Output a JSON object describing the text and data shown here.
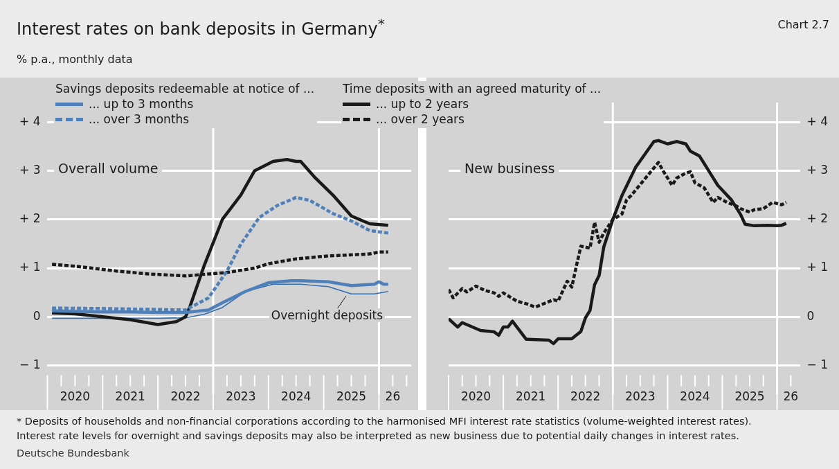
{
  "chart_data": [
    {
      "type": "line",
      "title": "Interest rates on bank deposits in Germany$^{*}$",
      "subtitle": "% p.a., monthly data",
      "annotations": [
        "Overall volume",
        "Savings deposits redeemable at notice of ...",
        "Time deposits with an agreed maturity of ...",
        "Chart 2.7",
        "* Deposits of households and non-financial corporations according to the harmonised MFI interest rate statistics (volume-weighted interest rates).",
        "Interest rate levels for overnight and savings deposits may also be interpreted as new business due to potential daily changes in interest rates.",
        "Deutsche Bundesbank",
        {
          "text": "Overnight deposits",
          "x": "2025-06",
          "y": 0.47
        }
      ],
      "xlim": [
        "2020-01",
        "2026-08"
      ],
      "ylim": [
        -1,
        4.4
      ],
      "xticks": [
        {
          "value": "2020-07",
          "label": "2020"
        },
        {
          "value": "2021-07",
          "label": "2021"
        },
        {
          "value": "2022-07",
          "label": "2022"
        },
        {
          "value": "2023-07",
          "label": "2023"
        },
        {
          "value": "2024-07",
          "label": "2024"
        },
        {
          "value": "2025-07",
          "label": "2025"
        },
        {
          "value": "2026-04",
          "label": "26"
        }
      ],
      "yticks": [
        {
          "value": -1,
          "label": "− 1"
        },
        0,
        {
          "value": 1,
          "label": "+ 1"
        },
        {
          "value": 2,
          "label": "+ 2"
        },
        {
          "value": 3,
          "label": "+ 3"
        },
        {
          "value": 4,
          "label": "+ 4"
        }
      ],
      "grid": "y",
      "legend": "top",
      "marker": "none",
      "ref_lines": [
        {
          "axis": "x",
          "value": "2023-01",
          "color": "#ffffff"
        },
        {
          "axis": "x",
          "value": "2026-01",
          "color": "#ffffff"
        }
      ],
      "series": [
        {
          "name": "... up to 3 months",
          "color": "#4f80b9",
          "line_style": "solid",
          "x": [
            "2020-02",
            "2020-07",
            "2021-01",
            "2021-07",
            "2022-01",
            "2022-07",
            "2022-12",
            "2023-03",
            "2023-08",
            "2024-01",
            "2024-06",
            "2024-08",
            "2025-02",
            "2025-07",
            "2025-12",
            "2026-01",
            "2026-02",
            "2026-03"
          ],
          "values": [
            0.12,
            0.11,
            0.1,
            0.1,
            0.09,
            0.09,
            0.14,
            0.29,
            0.52,
            0.7,
            0.74,
            0.74,
            0.72,
            0.64,
            0.67,
            0.72,
            0.67,
            0.67
          ]
        },
        {
          "name": "... over 3 months",
          "color": "#4f80b9",
          "line_style": "dashed",
          "x": [
            "2020-02",
            "2021-01",
            "2022-01",
            "2022-07",
            "2022-12",
            "2023-04",
            "2023-07",
            "2023-11",
            "2024-03",
            "2024-07",
            "2024-10",
            "2025-03",
            "2025-07",
            "2025-11",
            "2026-03"
          ],
          "values": [
            0.18,
            0.17,
            0.15,
            0.14,
            0.39,
            0.94,
            1.49,
            2.04,
            2.29,
            2.45,
            2.39,
            2.12,
            1.97,
            1.77,
            1.72
          ]
        },
        {
          "name": "... up to 2 years",
          "color": "#1a1a1a",
          "line_style": "solid",
          "x": [
            "2020-02",
            "2020-07",
            "2021-01",
            "2021-07",
            "2022-01",
            "2022-05",
            "2022-07",
            "2022-08",
            "2022-11",
            "2023-03",
            "2023-07",
            "2023-10",
            "2024-02",
            "2024-05",
            "2024-07",
            "2024-08",
            "2024-11",
            "2025-03",
            "2025-07",
            "2025-11",
            "2026-03"
          ],
          "values": [
            0.08,
            0.06,
            0,
            -0.06,
            -0.16,
            -0.1,
            0,
            0.22,
            1.04,
            2,
            2.5,
            3,
            3.19,
            3.23,
            3.19,
            3.19,
            2.87,
            2.5,
            2.07,
            1.91,
            1.88
          ]
        },
        {
          "name": "... over 2 years",
          "color": "#1a1a1a",
          "line_style": "dashed",
          "x": [
            "2020-02",
            "2020-07",
            "2021-04",
            "2021-11",
            "2022-07",
            "2022-12",
            "2023-04",
            "2023-10",
            "2024-01",
            "2024-07",
            "2025-02",
            "2025-11",
            "2026-01",
            "2026-03"
          ],
          "values": [
            1.08,
            1.04,
            0.94,
            0.88,
            0.84,
            0.88,
            0.91,
            1,
            1.09,
            1.19,
            1.25,
            1.29,
            1.33,
            1.33
          ]
        },
        {
          "color": "#2f6db0",
          "line_style": "solid",
          "x": [
            "2020-02",
            "2021-01",
            "2022-01",
            "2022-07",
            "2022-11",
            "2023-03",
            "2023-08",
            "2024-02",
            "2024-08",
            "2025-02",
            "2025-07",
            "2025-12",
            "2026-03"
          ],
          "values": [
            -0.03,
            -0.03,
            -0.03,
            -0.02,
            0.05,
            0.19,
            0.52,
            0.67,
            0.67,
            0.62,
            0.47,
            0.47,
            0.52
          ]
        }
      ]
    },
    {
      "type": "line",
      "annotations": [
        "New business"
      ],
      "xlim": [
        "2020-01",
        "2026-06"
      ],
      "ylim": [
        -1,
        4.4
      ],
      "xticks": [
        {
          "value": "2020-07",
          "label": "2020"
        },
        {
          "value": "2021-07",
          "label": "2021"
        },
        {
          "value": "2022-07",
          "label": "2022"
        },
        {
          "value": "2023-07",
          "label": "2023"
        },
        {
          "value": "2024-07",
          "label": "2024"
        },
        {
          "value": "2025-07",
          "label": "2025"
        },
        {
          "value": "2026-04",
          "label": "26"
        }
      ],
      "yticks": [
        {
          "value": -1,
          "label": "− 1"
        },
        0,
        {
          "value": 1,
          "label": "+ 1"
        },
        {
          "value": 2,
          "label": "+ 2"
        },
        {
          "value": 3,
          "label": "+ 3"
        },
        {
          "value": 4,
          "label": "+ 4"
        }
      ],
      "grid": "y",
      "marker": "none",
      "ref_lines": [
        {
          "axis": "x",
          "value": "2023-01",
          "color": "#ffffff"
        },
        {
          "axis": "x",
          "value": "2026-01",
          "color": "#ffffff"
        }
      ],
      "series": [
        {
          "name": "... up to 2 years",
          "color": "#1a1a1a",
          "line_style": "solid",
          "x": [
            "2020-01",
            "2020-03",
            "2020-04",
            "2020-08",
            "2020-11",
            "2020-12",
            "2021-01",
            "2021-02",
            "2021-03",
            "2021-06",
            "2021-11",
            "2021-12",
            "2022-01",
            "2022-04",
            "2022-06",
            "2022-07",
            "2022-08",
            "2022-09",
            "2022-10",
            "2022-11",
            "2023-01",
            "2023-03",
            "2023-06",
            "2023-10",
            "2023-11",
            "2024-01",
            "2024-03",
            "2024-05",
            "2024-06",
            "2024-08",
            "2024-10",
            "2024-12",
            "2025-03",
            "2025-05",
            "2025-06",
            "2025-08",
            "2025-11",
            "2026-01",
            "2026-02",
            "2026-03"
          ],
          "values": [
            -0.04,
            -0.21,
            -0.12,
            -0.28,
            -0.31,
            -0.38,
            -0.21,
            -0.21,
            -0.09,
            -0.46,
            -0.48,
            -0.55,
            -0.45,
            -0.45,
            -0.3,
            -0.02,
            0.13,
            0.66,
            0.85,
            1.43,
            2,
            2.49,
            3.07,
            3.6,
            3.62,
            3.55,
            3.6,
            3.55,
            3.4,
            3.3,
            3,
            2.7,
            2.4,
            2.1,
            1.9,
            1.87,
            1.88,
            1.87,
            1.88,
            1.92
          ]
        },
        {
          "name": "... over 2 years",
          "color": "#1a1a1a",
          "line_style": "dashed",
          "x": [
            "2020-01",
            "2020-02",
            "2020-04",
            "2020-05",
            "2020-07",
            "2020-09",
            "2020-11",
            "2020-12",
            "2021-01",
            "2021-04",
            "2021-06",
            "2021-08",
            "2021-12",
            "2022-01",
            "2022-03",
            "2022-04",
            "2022-05",
            "2022-06",
            "2022-08",
            "2022-09",
            "2022-10",
            "2022-11",
            "2023-01",
            "2023-03",
            "2023-04",
            "2023-05",
            "2023-08",
            "2023-11",
            "2023-12",
            "2024-02",
            "2024-03",
            "2024-05",
            "2024-06",
            "2024-07",
            "2024-09",
            "2024-11",
            "2024-12",
            "2025-02",
            "2025-04",
            "2025-05",
            "2025-07",
            "2025-08",
            "2025-10",
            "2025-12",
            "2026-02",
            "2026-03"
          ],
          "values": [
            0.56,
            0.39,
            0.58,
            0.51,
            0.63,
            0.54,
            0.49,
            0.42,
            0.49,
            0.32,
            0.27,
            0.2,
            0.35,
            0.32,
            0.73,
            0.61,
            1.04,
            1.45,
            1.41,
            1.94,
            1.53,
            1.72,
            2,
            2.11,
            2.4,
            2.49,
            2.83,
            3.17,
            3,
            2.7,
            2.85,
            2.95,
            2.98,
            2.75,
            2.65,
            2.35,
            2.45,
            2.35,
            2.28,
            2.22,
            2.15,
            2.2,
            2.22,
            2.35,
            2.3,
            2.35
          ]
        }
      ]
    }
  ]
}
